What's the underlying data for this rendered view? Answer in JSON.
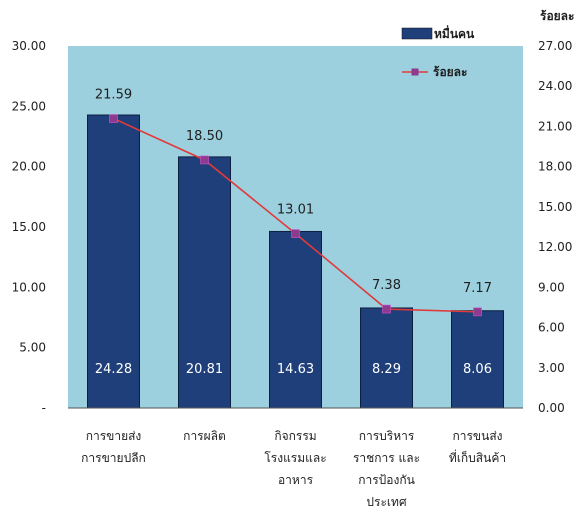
{
  "chart_data": {
    "type": "bar",
    "categories": [
      [
        "การขายส่ง",
        "การขายปลีก"
      ],
      [
        "การผลิต"
      ],
      [
        "กิจกรรม",
        "โรงแรมและ",
        "อาหาร"
      ],
      [
        "การบริหาร",
        "ราชการ และ",
        "การป้องกัน",
        "ประเทศ"
      ],
      [
        "การขนส่ง",
        "ที่เก็บสินค้า"
      ]
    ],
    "series": [
      {
        "name": "หมื่นคน",
        "type": "bar",
        "axis": "left",
        "values": [
          24.28,
          20.81,
          14.63,
          8.29,
          8.06
        ],
        "labels": [
          "24.28",
          "20.81",
          "14.63",
          "8.29",
          "8.06"
        ],
        "color": "#1f3f7a"
      },
      {
        "name": "ร้อยละ",
        "type": "line",
        "axis": "right",
        "values": [
          21.59,
          18.5,
          13.01,
          7.38,
          7.17
        ],
        "labels": [
          "21.59",
          "18.50",
          "13.01",
          "7.38",
          "7.17"
        ],
        "color": "#e03a3a",
        "marker_color": "#8e3a8e"
      }
    ],
    "y_left": {
      "ylim": [
        0,
        30
      ],
      "ticks": [
        0,
        5,
        10,
        15,
        20,
        25,
        30
      ],
      "tick_labels": [
        "-",
        "5.00",
        "10.00",
        "15.00",
        "20.00",
        "25.00",
        "30.00"
      ]
    },
    "y_right": {
      "label": "ร้อยละ",
      "ylim": [
        0,
        27
      ],
      "ticks": [
        0,
        3,
        6,
        9,
        12,
        15,
        18,
        21,
        24,
        27
      ],
      "tick_labels": [
        "0.00",
        "3.00",
        "6.00",
        "9.00",
        "12.00",
        "15.00",
        "18.00",
        "21.00",
        "24.00",
        "27.00"
      ]
    },
    "plot_background": "#9cd0de",
    "grid": false,
    "legend_position": "top-right"
  }
}
